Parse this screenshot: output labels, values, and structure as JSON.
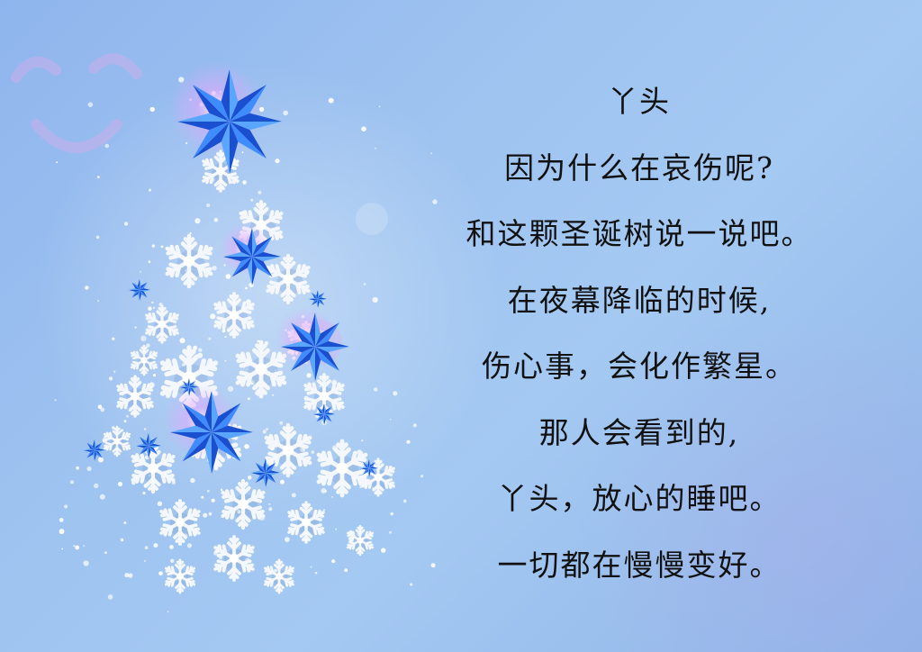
{
  "poem": {
    "lines": [
      "丫头",
      "因为什么在哀伤呢?",
      "和这颗圣诞树说一说吧。",
      "在夜幕降临的时候,",
      "伤心事，会化作繁星。",
      "那人会看到的,",
      "丫头，放心的睡吧。",
      "一切都在慢慢变好。"
    ]
  },
  "decor": {
    "tree_icon": "snowflake-christmas-tree",
    "watermark_icon": "smiley-face",
    "colors": {
      "background": "#9ec3f0",
      "star_blue": "#2d6ff0",
      "star_highlight": "#c98cf5",
      "snowflake": "#f4f7fc",
      "text": "#111111"
    }
  }
}
